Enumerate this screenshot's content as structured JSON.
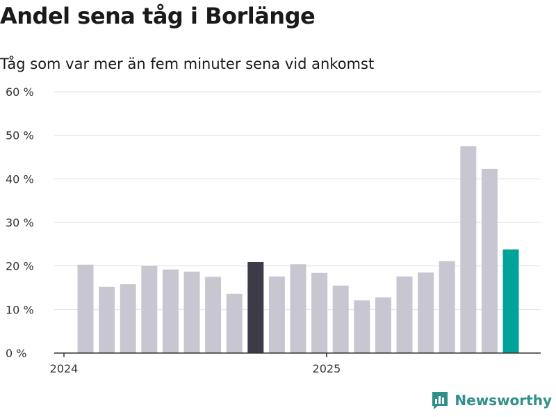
{
  "header": {
    "title": "Andel sena tåg i Borlänge",
    "subtitle": "Tåg som var mer än fem minuter sena vid ankomst"
  },
  "logo": {
    "text": "Newsworthy",
    "icon": "newsworthy-chart-icon"
  },
  "colors": {
    "bar_default": "#c8c7d1",
    "bar_highlight_dark": "#3d3b47",
    "bar_highlight_teal": "#00a39a",
    "grid": "#dddddd",
    "axis": "#333333",
    "logo": "#2f8f8a"
  },
  "chart_data": {
    "type": "bar",
    "title": "Andel sena tåg i Borlänge",
    "subtitle": "Tåg som var mer än fem minuter sena vid ankomst",
    "xlabel": "",
    "ylabel": "",
    "ylim": [
      0,
      60
    ],
    "yticks": [
      0,
      10,
      20,
      30,
      40,
      50,
      60
    ],
    "ytick_labels": [
      "0 %",
      "10 %",
      "20 %",
      "30 %",
      "40 %",
      "50 %",
      "60 %"
    ],
    "x_tick_labels": [
      {
        "label": "2024",
        "index": 0
      },
      {
        "label": "2025",
        "index": 12
      }
    ],
    "grid": true,
    "legend": "none",
    "values": [
      20.3,
      15.2,
      15.8,
      20.0,
      19.2,
      18.7,
      17.5,
      13.6,
      20.9,
      17.6,
      20.4,
      18.4,
      15.5,
      12.1,
      12.8,
      17.6,
      18.5,
      21.1,
      47.5,
      42.3,
      23.8
    ],
    "highlight": {
      "dark_index": 8,
      "teal_index": 20
    }
  }
}
